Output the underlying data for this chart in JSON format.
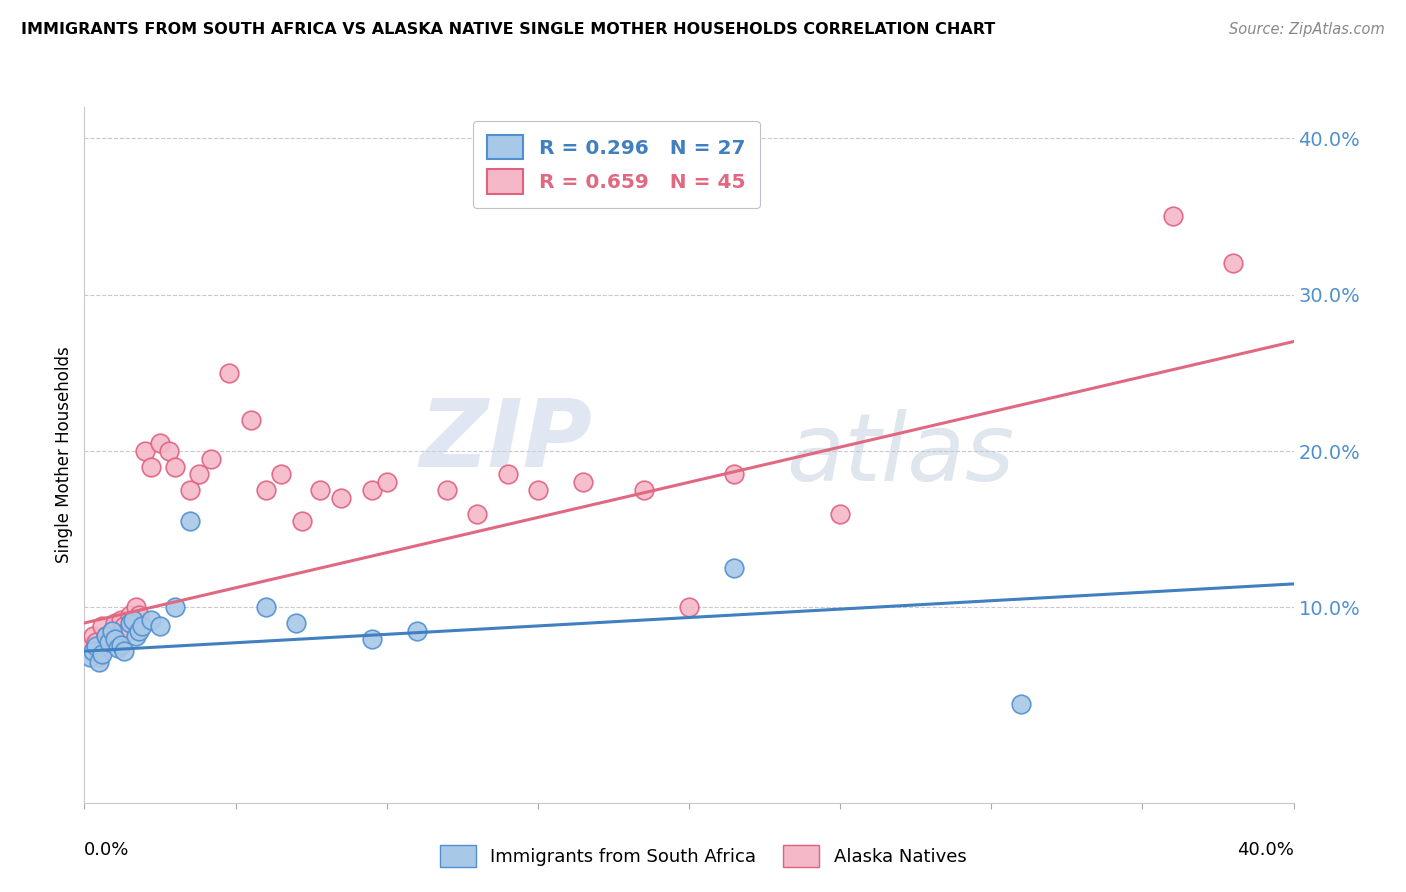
{
  "title": "IMMIGRANTS FROM SOUTH AFRICA VS ALASKA NATIVE SINGLE MOTHER HOUSEHOLDS CORRELATION CHART",
  "source": "Source: ZipAtlas.com",
  "ylabel": "Single Mother Households",
  "legend_blue_label": "Immigrants from South Africa",
  "legend_pink_label": "Alaska Natives",
  "legend_R_blue": "R = 0.296",
  "legend_N_blue": "N = 27",
  "legend_R_pink": "R = 0.659",
  "legend_N_pink": "N = 45",
  "blue_fill": "#a8c8e8",
  "pink_fill": "#f4b8c8",
  "blue_edge": "#5090d0",
  "pink_edge": "#e06080",
  "blue_line": "#4080c0",
  "pink_line": "#e06880",
  "watermark_zip": "ZIP",
  "watermark_atlas": "atlas",
  "xlim": [
    0.0,
    0.4
  ],
  "ylim": [
    -0.025,
    0.42
  ],
  "ytick_vals": [
    0.1,
    0.2,
    0.3,
    0.4
  ],
  "ytick_labels": [
    "10.0%",
    "20.0%",
    "30.0%",
    "40.0%"
  ],
  "xtick_vals": [
    0.0,
    0.05,
    0.1,
    0.15,
    0.2,
    0.25,
    0.3,
    0.35,
    0.4
  ],
  "blue_points_x": [
    0.002,
    0.003,
    0.004,
    0.005,
    0.006,
    0.007,
    0.008,
    0.009,
    0.01,
    0.011,
    0.012,
    0.013,
    0.015,
    0.016,
    0.017,
    0.018,
    0.019,
    0.022,
    0.025,
    0.03,
    0.035,
    0.06,
    0.07,
    0.095,
    0.11,
    0.215,
    0.31
  ],
  "blue_points_y": [
    0.068,
    0.072,
    0.075,
    0.065,
    0.07,
    0.082,
    0.078,
    0.085,
    0.08,
    0.074,
    0.076,
    0.072,
    0.09,
    0.092,
    0.082,
    0.085,
    0.088,
    0.092,
    0.088,
    0.1,
    0.155,
    0.1,
    0.09,
    0.08,
    0.085,
    0.125,
    0.038
  ],
  "pink_points_x": [
    0.002,
    0.003,
    0.004,
    0.005,
    0.006,
    0.007,
    0.008,
    0.009,
    0.01,
    0.011,
    0.012,
    0.013,
    0.014,
    0.015,
    0.016,
    0.017,
    0.018,
    0.02,
    0.022,
    0.025,
    0.028,
    0.03,
    0.035,
    0.038,
    0.042,
    0.048,
    0.055,
    0.06,
    0.065,
    0.072,
    0.078,
    0.085,
    0.095,
    0.1,
    0.12,
    0.13,
    0.14,
    0.15,
    0.165,
    0.185,
    0.2,
    0.215,
    0.25,
    0.36,
    0.38
  ],
  "pink_points_y": [
    0.075,
    0.082,
    0.078,
    0.068,
    0.088,
    0.082,
    0.08,
    0.085,
    0.09,
    0.082,
    0.092,
    0.088,
    0.085,
    0.095,
    0.09,
    0.1,
    0.095,
    0.2,
    0.19,
    0.205,
    0.2,
    0.19,
    0.175,
    0.185,
    0.195,
    0.25,
    0.22,
    0.175,
    0.185,
    0.155,
    0.175,
    0.17,
    0.175,
    0.18,
    0.175,
    0.16,
    0.185,
    0.175,
    0.18,
    0.175,
    0.1,
    0.185,
    0.16,
    0.35,
    0.32
  ],
  "blue_trend_x": [
    0.0,
    0.4
  ],
  "blue_trend_y": [
    0.072,
    0.115
  ],
  "pink_trend_x": [
    0.0,
    0.4
  ],
  "pink_trend_y": [
    0.09,
    0.27
  ]
}
